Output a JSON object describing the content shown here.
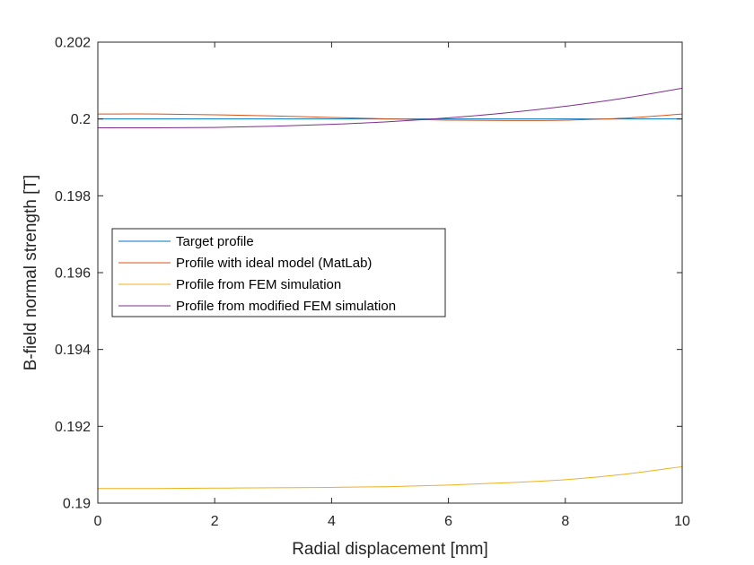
{
  "chart_data": {
    "type": "line",
    "xlabel": "Radial displacement [mm]",
    "ylabel": "B-field normal strength [T]",
    "xlim": [
      0,
      10
    ],
    "ylim": [
      0.19,
      0.202
    ],
    "xticks": [
      0,
      2,
      4,
      6,
      8,
      10
    ],
    "xtick_labels": [
      "0",
      "2",
      "4",
      "6",
      "8",
      "10"
    ],
    "yticks": [
      0.19,
      0.192,
      0.194,
      0.196,
      0.198,
      0.2,
      0.202
    ],
    "ytick_labels": [
      "0.19",
      "0.192",
      "0.194",
      "0.196",
      "0.198",
      "0.2",
      "0.202"
    ],
    "grid": false,
    "legend_position": "middle-left",
    "x": [
      0,
      1,
      2,
      3,
      4,
      5,
      6,
      7,
      8,
      9,
      10
    ],
    "series": [
      {
        "name": "Target profile",
        "color": "#0072BD",
        "values": [
          0.2,
          0.2,
          0.2,
          0.2,
          0.2,
          0.2,
          0.2,
          0.2,
          0.2,
          0.2,
          0.2
        ]
      },
      {
        "name": "Profile with ideal model (MatLab)",
        "color": "#D95319",
        "values": [
          0.20013,
          0.20013,
          0.20011,
          0.20008,
          0.20004,
          0.2,
          0.19997,
          0.19996,
          0.19997,
          0.20002,
          0.20013
        ]
      },
      {
        "name": "Profile from FEM simulation",
        "color": "#EDB120",
        "values": [
          0.19038,
          0.19038,
          0.19039,
          0.1904,
          0.19041,
          0.19043,
          0.19047,
          0.19053,
          0.19061,
          0.19075,
          0.19095
        ]
      },
      {
        "name": "Profile from modified FEM simulation",
        "color": "#7E2F8E",
        "values": [
          0.19977,
          0.19977,
          0.19978,
          0.19981,
          0.19986,
          0.19993,
          0.20003,
          0.20016,
          0.20033,
          0.20054,
          0.2008
        ]
      }
    ]
  }
}
